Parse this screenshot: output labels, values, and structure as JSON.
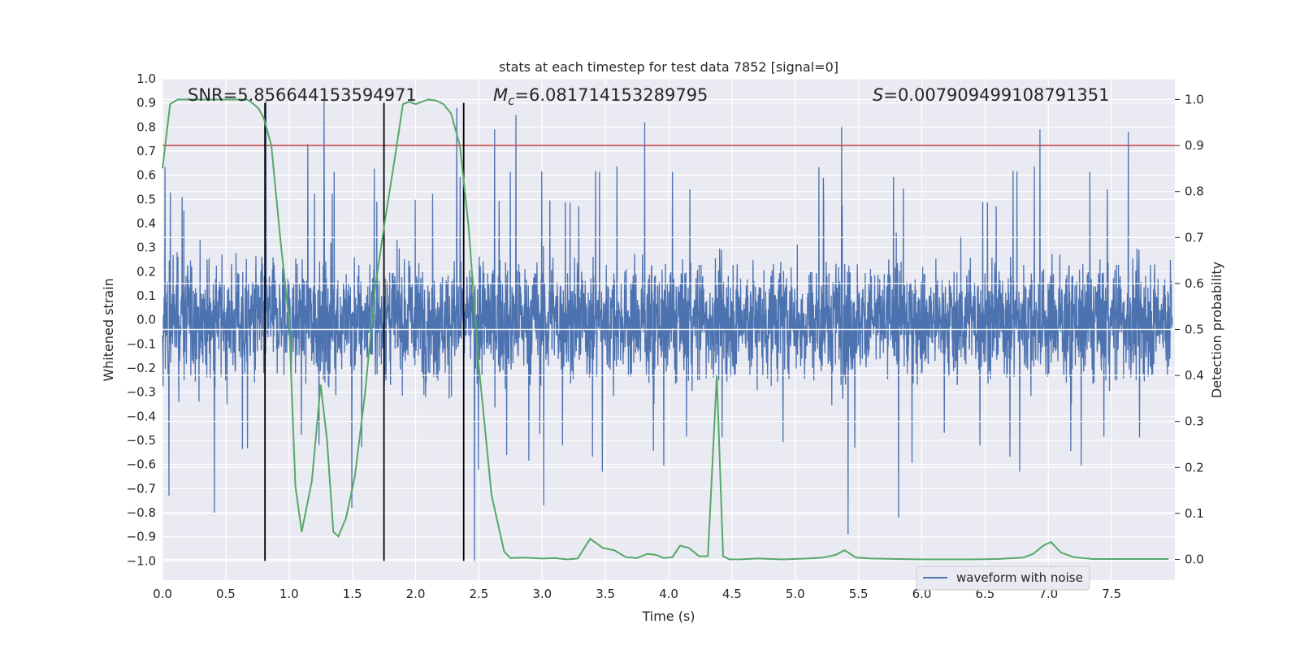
{
  "chart_data": {
    "type": "line",
    "title": "stats at each timestep for test data 7852 [signal=0]",
    "xlabel": "Time (s)",
    "ylabel": "Whitened strain",
    "y2label": "Detection probability",
    "xlim": [
      0.0,
      8.0
    ],
    "ylim": [
      -1.08,
      1.0
    ],
    "y2lim": [
      -0.045,
      1.045
    ],
    "grid": true,
    "legend_position": "lower-right",
    "x_ticks": [
      "0.0",
      "0.5",
      "1.0",
      "1.5",
      "2.0",
      "2.5",
      "3.0",
      "3.5",
      "4.0",
      "4.5",
      "5.0",
      "5.5",
      "6.0",
      "6.5",
      "7.0",
      "7.5"
    ],
    "y_ticks": [
      "1.0",
      "0.9",
      "0.8",
      "0.7",
      "0.6",
      "0.5",
      "0.4",
      "0.3",
      "0.2",
      "0.1",
      "0.0",
      "−0.1",
      "−0.2",
      "−0.3",
      "−0.4",
      "−0.5",
      "−0.6",
      "−0.7",
      "−0.8",
      "−0.9",
      "−1.0"
    ],
    "y2_ticks": [
      "1.0",
      "0.9",
      "0.8",
      "0.7",
      "0.6",
      "0.5",
      "0.4",
      "0.3",
      "0.2",
      "0.1",
      "0.0"
    ],
    "annotations": {
      "snr": "SNR=5.856644153594971",
      "mc_symbol": "M",
      "mc_sub": "c",
      "mc_value": "=6.081714153289795",
      "s_symbol": "S",
      "s_value": "=0.007909499108791351"
    },
    "threshold_line": {
      "y2": 0.9,
      "color": "#c44e52"
    },
    "vertical_lines": {
      "x": [
        0.81,
        1.75,
        2.38
      ],
      "y_from": -1.0,
      "y_to": 0.9,
      "color": "#000000"
    },
    "series": [
      {
        "name": "waveform with noise",
        "color": "#4c72b0",
        "role": "whitened strain, dense noise around zero",
        "envelope": {
          "typical_abs": 0.4,
          "peak_max": 0.91,
          "peak_min": -1.0
        },
        "spikes": [
          {
            "x": 0.05,
            "y": -0.73
          },
          {
            "x": 0.41,
            "y": -0.8
          },
          {
            "x": 0.82,
            "y": 0.91
          },
          {
            "x": 1.15,
            "y": 0.73
          },
          {
            "x": 1.28,
            "y": 0.91
          },
          {
            "x": 1.5,
            "y": -0.78
          },
          {
            "x": 2.33,
            "y": 0.88
          },
          {
            "x": 2.47,
            "y": -1.0
          },
          {
            "x": 2.63,
            "y": 0.79
          },
          {
            "x": 2.8,
            "y": 0.85
          },
          {
            "x": 3.02,
            "y": -0.77
          },
          {
            "x": 3.82,
            "y": 0.82
          },
          {
            "x": 5.38,
            "y": 0.8
          },
          {
            "x": 5.43,
            "y": -0.89
          },
          {
            "x": 5.83,
            "y": -0.82
          },
          {
            "x": 6.95,
            "y": 0.79
          },
          {
            "x": 7.65,
            "y": 0.78
          }
        ]
      },
      {
        "name": "",
        "color": "#55a868",
        "role": "detection probability (right axis)",
        "x": [
          0.0,
          0.06,
          0.12,
          0.2,
          0.3,
          0.4,
          0.5,
          0.6,
          0.67,
          0.72,
          0.76,
          0.8,
          0.86,
          0.93,
          1.0,
          1.05,
          1.1,
          1.18,
          1.25,
          1.3,
          1.35,
          1.39,
          1.45,
          1.52,
          1.6,
          1.68,
          1.76,
          1.84,
          1.9,
          1.95,
          2.0,
          2.05,
          2.1,
          2.16,
          2.22,
          2.28,
          2.35,
          2.42,
          2.5,
          2.6,
          2.7,
          2.75,
          2.85,
          3.0,
          3.1,
          3.2,
          3.28,
          3.38,
          3.48,
          3.57,
          3.66,
          3.75,
          3.83,
          3.9,
          3.96,
          4.03,
          4.09,
          4.16,
          4.24,
          4.31,
          4.38,
          4.43,
          4.48,
          4.56,
          4.7,
          4.9,
          5.1,
          5.22,
          5.32,
          5.39,
          5.48,
          5.6,
          5.8,
          6.0,
          6.2,
          6.4,
          6.6,
          6.8,
          6.88,
          6.96,
          7.02,
          7.1,
          7.2,
          7.35,
          7.55,
          7.75,
          7.95
        ],
        "y": [
          0.85,
          0.99,
          1.0,
          1.0,
          1.0,
          1.0,
          1.0,
          1.0,
          1.0,
          0.99,
          0.98,
          0.96,
          0.9,
          0.7,
          0.52,
          0.16,
          0.06,
          0.17,
          0.38,
          0.26,
          0.06,
          0.05,
          0.09,
          0.18,
          0.36,
          0.59,
          0.74,
          0.88,
          0.99,
          0.995,
          0.99,
          0.995,
          1.0,
          0.998,
          0.99,
          0.97,
          0.9,
          0.72,
          0.42,
          0.14,
          0.017,
          0.003,
          0.004,
          0.002,
          0.003,
          0.0,
          0.002,
          0.045,
          0.025,
          0.02,
          0.005,
          0.003,
          0.012,
          0.01,
          0.003,
          0.005,
          0.03,
          0.025,
          0.007,
          0.007,
          0.4,
          0.007,
          0.0,
          0.0,
          0.002,
          0.0,
          0.002,
          0.004,
          0.01,
          0.02,
          0.004,
          0.002,
          0.001,
          0.0,
          0.0,
          0.0,
          0.001,
          0.004,
          0.012,
          0.03,
          0.038,
          0.015,
          0.005,
          0.001,
          0.001,
          0.001,
          0.001
        ]
      }
    ]
  }
}
